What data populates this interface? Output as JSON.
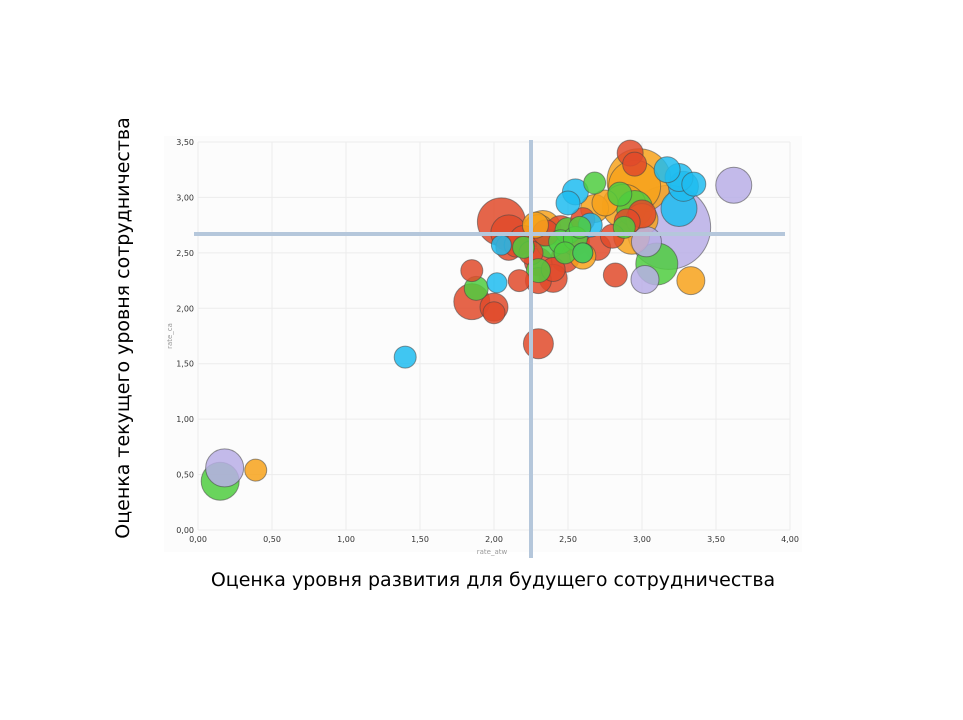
{
  "chart_data": {
    "type": "scatter",
    "subtype": "bubble",
    "title": "",
    "xlabel": "Оценка уровня развития для будущего сотрудничества",
    "ylabel": "Оценка текущего уровня сотрудничества",
    "x_field_label": "rate_atw",
    "y_field_label": "rate_ca",
    "xlim": [
      0,
      4
    ],
    "ylim": [
      0,
      3.5
    ],
    "x_ticks": [
      {
        "value": 0,
        "label": "0,00"
      },
      {
        "value": 0.5,
        "label": "0,50"
      },
      {
        "value": 1,
        "label": "1,00"
      },
      {
        "value": 1.5,
        "label": "1,50"
      },
      {
        "value": 2,
        "label": "2,00"
      },
      {
        "value": 2.5,
        "label": "2,50"
      },
      {
        "value": 3,
        "label": "3,00"
      },
      {
        "value": 3.5,
        "label": "3,50"
      },
      {
        "value": 4,
        "label": "4,00"
      }
    ],
    "y_ticks": [
      {
        "value": 0,
        "label": "0,00"
      },
      {
        "value": 0.5,
        "label": "0,50"
      },
      {
        "value": 1,
        "label": "1,00"
      },
      {
        "value": 1.5,
        "label": "1,50"
      },
      {
        "value": 2,
        "label": "2,00"
      },
      {
        "value": 2.5,
        "label": "2,50"
      },
      {
        "value": 3,
        "label": "3,00"
      },
      {
        "value": 3.5,
        "label": "3,50"
      }
    ],
    "grid": true,
    "reference_lines": {
      "x": 2.25,
      "y": 2.67
    },
    "colors": {
      "red": "#e04a2a",
      "orange": "#f7a21b",
      "blue": "#1ebcf0",
      "green": "#4fcc40",
      "purple": "#b9aee6"
    },
    "series": [
      {
        "color": "red",
        "points": [
          {
            "x": 2.05,
            "y": 2.78,
            "r": 24
          },
          {
            "x": 2.1,
            "y": 2.68,
            "r": 18
          },
          {
            "x": 2.1,
            "y": 2.55,
            "r": 13
          },
          {
            "x": 2.15,
            "y": 2.57,
            "r": 12
          },
          {
            "x": 2.2,
            "y": 2.62,
            "r": 14
          },
          {
            "x": 2.25,
            "y": 2.5,
            "r": 12
          },
          {
            "x": 2.3,
            "y": 2.42,
            "r": 14
          },
          {
            "x": 2.4,
            "y": 2.35,
            "r": 12
          },
          {
            "x": 2.48,
            "y": 2.45,
            "r": 14
          },
          {
            "x": 2.55,
            "y": 2.6,
            "r": 14
          },
          {
            "x": 2.45,
            "y": 2.7,
            "r": 15
          },
          {
            "x": 2.35,
            "y": 2.68,
            "r": 13
          },
          {
            "x": 1.85,
            "y": 2.06,
            "r": 18
          },
          {
            "x": 1.85,
            "y": 2.34,
            "r": 11
          },
          {
            "x": 2.0,
            "y": 2.01,
            "r": 14
          },
          {
            "x": 2.0,
            "y": 1.96,
            "r": 11
          },
          {
            "x": 2.17,
            "y": 2.25,
            "r": 11
          },
          {
            "x": 2.3,
            "y": 2.25,
            "r": 13
          },
          {
            "x": 2.4,
            "y": 2.27,
            "r": 14
          },
          {
            "x": 2.3,
            "y": 1.68,
            "r": 15
          },
          {
            "x": 2.82,
            "y": 2.3,
            "r": 12
          },
          {
            "x": 2.92,
            "y": 3.4,
            "r": 13
          },
          {
            "x": 2.8,
            "y": 2.65,
            "r": 12
          },
          {
            "x": 2.9,
            "y": 2.78,
            "r": 13
          },
          {
            "x": 3.0,
            "y": 2.85,
            "r": 14
          },
          {
            "x": 2.6,
            "y": 2.8,
            "r": 12
          },
          {
            "x": 2.7,
            "y": 2.55,
            "r": 13
          },
          {
            "x": 2.95,
            "y": 3.3,
            "r": 12
          }
        ]
      },
      {
        "color": "orange",
        "points": [
          {
            "x": 2.28,
            "y": 2.75,
            "r": 13
          },
          {
            "x": 2.3,
            "y": 2.7,
            "r": 16
          },
          {
            "x": 2.33,
            "y": 2.72,
            "r": 18
          },
          {
            "x": 2.6,
            "y": 2.47,
            "r": 13
          },
          {
            "x": 2.68,
            "y": 2.9,
            "r": 14
          },
          {
            "x": 2.75,
            "y": 2.95,
            "r": 13
          },
          {
            "x": 2.88,
            "y": 2.92,
            "r": 22
          },
          {
            "x": 2.95,
            "y": 3.1,
            "r": 26
          },
          {
            "x": 2.98,
            "y": 3.15,
            "r": 32
          },
          {
            "x": 3.0,
            "y": 2.8,
            "r": 16
          },
          {
            "x": 2.93,
            "y": 2.65,
            "r": 18
          },
          {
            "x": 3.33,
            "y": 2.25,
            "r": 14
          },
          {
            "x": 0.39,
            "y": 0.54,
            "r": 11
          }
        ]
      },
      {
        "color": "blue",
        "points": [
          {
            "x": 2.55,
            "y": 3.05,
            "r": 13
          },
          {
            "x": 2.5,
            "y": 2.95,
            "r": 12
          },
          {
            "x": 2.65,
            "y": 2.75,
            "r": 12
          },
          {
            "x": 2.6,
            "y": 2.5,
            "r": 10
          },
          {
            "x": 3.17,
            "y": 3.25,
            "r": 13
          },
          {
            "x": 3.25,
            "y": 3.18,
            "r": 14
          },
          {
            "x": 3.28,
            "y": 3.1,
            "r": 15
          },
          {
            "x": 3.35,
            "y": 3.12,
            "r": 12
          },
          {
            "x": 3.25,
            "y": 2.9,
            "r": 18
          },
          {
            "x": 2.05,
            "y": 2.57,
            "r": 10
          },
          {
            "x": 2.02,
            "y": 2.23,
            "r": 10
          },
          {
            "x": 1.4,
            "y": 1.56,
            "r": 11
          }
        ]
      },
      {
        "color": "green",
        "points": [
          {
            "x": 2.2,
            "y": 2.55,
            "r": 11
          },
          {
            "x": 2.3,
            "y": 2.34,
            "r": 12
          },
          {
            "x": 2.38,
            "y": 2.58,
            "r": 14
          },
          {
            "x": 2.45,
            "y": 2.6,
            "r": 12
          },
          {
            "x": 2.5,
            "y": 2.7,
            "r": 13
          },
          {
            "x": 2.55,
            "y": 2.63,
            "r": 12
          },
          {
            "x": 2.58,
            "y": 2.73,
            "r": 11
          },
          {
            "x": 2.48,
            "y": 2.5,
            "r": 11
          },
          {
            "x": 2.6,
            "y": 2.5,
            "r": 10
          },
          {
            "x": 2.68,
            "y": 3.13,
            "r": 11
          },
          {
            "x": 2.85,
            "y": 3.03,
            "r": 12
          },
          {
            "x": 2.88,
            "y": 2.73,
            "r": 11
          },
          {
            "x": 2.95,
            "y": 2.9,
            "r": 18
          },
          {
            "x": 3.1,
            "y": 2.4,
            "r": 21
          },
          {
            "x": 1.88,
            "y": 2.18,
            "r": 12
          },
          {
            "x": 0.15,
            "y": 0.44,
            "r": 19
          }
        ]
      },
      {
        "color": "purple",
        "points": [
          {
            "x": 3.18,
            "y": 2.73,
            "r": 42
          },
          {
            "x": 3.62,
            "y": 3.11,
            "r": 18
          },
          {
            "x": 3.03,
            "y": 2.6,
            "r": 15
          },
          {
            "x": 3.02,
            "y": 2.26,
            "r": 14
          },
          {
            "x": 0.18,
            "y": 0.56,
            "r": 19
          }
        ]
      }
    ]
  }
}
